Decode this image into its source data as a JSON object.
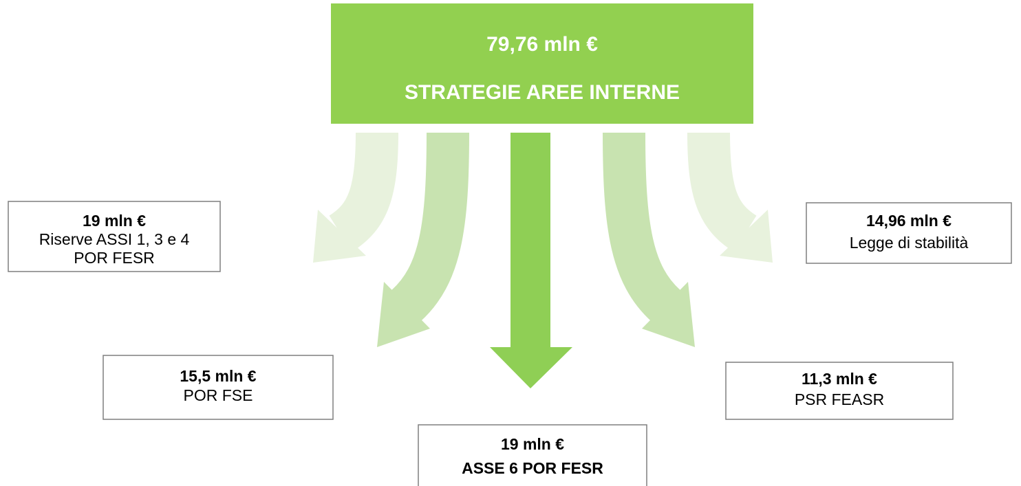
{
  "header": {
    "amount": "79,76 mln €",
    "title": "STRATEGIE AREE INTERNE"
  },
  "nodes": [
    {
      "amount": "19 mln €",
      "lines": [
        "Riserve ASSI 1, 3 e 4",
        "POR FESR"
      ]
    },
    {
      "amount": "15,5 mln €",
      "lines": [
        "POR FSE"
      ]
    },
    {
      "amount": "19 mln €",
      "lines": [
        "ASSE 6 POR FESR"
      ]
    },
    {
      "amount": "11,3 mln €",
      "lines": [
        "PSR FEASR"
      ]
    },
    {
      "amount": "14,96 mln €",
      "lines": [
        "Legge di stabilità"
      ]
    }
  ]
}
